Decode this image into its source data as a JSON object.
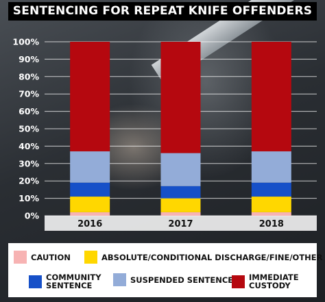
{
  "chart_data": {
    "type": "bar",
    "stacked": true,
    "title": "SENTENCING FOR REPEAT KNIFE OFFENDERS",
    "categories": [
      "2016",
      "2017",
      "2018"
    ],
    "ylim": [
      0,
      100
    ],
    "y_ticks": [
      "0%",
      "10%",
      "20%",
      "30%",
      "40%",
      "50%",
      "60%",
      "70%",
      "80%",
      "90%",
      "100%"
    ],
    "grid": true,
    "legend_position": "bottom",
    "series": [
      {
        "name": "CAUTION",
        "color": "#f7b3b3",
        "values": [
          2,
          2,
          2
        ]
      },
      {
        "name": "ABSOLUTE/CONDITIONAL DISCHARGE/FINE/OTHER",
        "color": "#ffd700",
        "values": [
          9,
          8,
          9
        ]
      },
      {
        "name": "COMMUNITY SENTENCE",
        "color": "#1650c8",
        "values": [
          8,
          7,
          8
        ]
      },
      {
        "name": "SUSPENDED SENTENCE",
        "color": "#93acd8",
        "values": [
          18,
          19,
          18
        ]
      },
      {
        "name": "IMMEDIATE CUSTODY",
        "color": "#b5080f",
        "values": [
          63,
          64,
          63
        ]
      }
    ]
  },
  "legend": {
    "items": [
      {
        "label": "CAUTION",
        "color": "#f7b3b3"
      },
      {
        "label": "ABSOLUTE/CONDITIONAL DISCHARGE/FINE/OTHER",
        "color": "#ffd700"
      },
      {
        "label_line1": "COMMUNITY",
        "label_line2": "SENTENCE",
        "color": "#1650c8"
      },
      {
        "label": "SUSPENDED SENTENCE",
        "color": "#93acd8"
      },
      {
        "label_line1": "IMMEDIATE",
        "label_line2": "CUSTODY",
        "color": "#b5080f"
      }
    ]
  }
}
